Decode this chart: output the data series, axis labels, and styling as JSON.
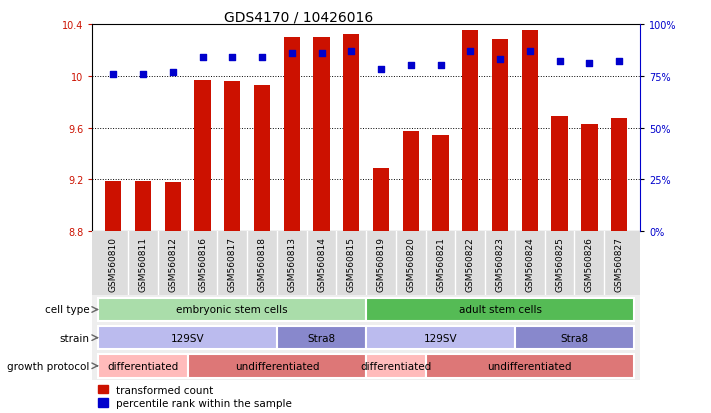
{
  "title": "GDS4170 / 10426016",
  "samples": [
    "GSM560810",
    "GSM560811",
    "GSM560812",
    "GSM560816",
    "GSM560817",
    "GSM560818",
    "GSM560813",
    "GSM560814",
    "GSM560815",
    "GSM560819",
    "GSM560820",
    "GSM560821",
    "GSM560822",
    "GSM560823",
    "GSM560824",
    "GSM560825",
    "GSM560826",
    "GSM560827"
  ],
  "red_values": [
    9.19,
    9.19,
    9.18,
    9.97,
    9.96,
    9.93,
    10.3,
    10.3,
    10.32,
    9.29,
    9.57,
    9.54,
    10.35,
    10.28,
    10.35,
    9.69,
    9.63,
    9.67
  ],
  "blue_values": [
    76,
    76,
    77,
    84,
    84,
    84,
    86,
    86,
    87,
    78,
    80,
    80,
    87,
    83,
    87,
    82,
    81,
    82
  ],
  "ymin": 8.8,
  "ymax": 10.4,
  "yticks": [
    8.8,
    9.2,
    9.6,
    10.0,
    10.4
  ],
  "right_yticks": [
    0,
    25,
    50,
    75,
    100
  ],
  "bar_color": "#cc1100",
  "dot_color": "#0000cc",
  "cell_type_groups": [
    {
      "label": "embryonic stem cells",
      "start": 0,
      "end": 8,
      "color": "#aaddaa"
    },
    {
      "label": "adult stem cells",
      "start": 9,
      "end": 17,
      "color": "#55bb55"
    }
  ],
  "strain_groups": [
    {
      "label": "129SV",
      "start": 0,
      "end": 5,
      "color": "#bbbbee"
    },
    {
      "label": "Stra8",
      "start": 6,
      "end": 8,
      "color": "#8888cc"
    },
    {
      "label": "129SV",
      "start": 9,
      "end": 13,
      "color": "#bbbbee"
    },
    {
      "label": "Stra8",
      "start": 14,
      "end": 17,
      "color": "#8888cc"
    }
  ],
  "protocol_groups": [
    {
      "label": "differentiated",
      "start": 0,
      "end": 2,
      "color": "#ffbbbb"
    },
    {
      "label": "undifferentiated",
      "start": 3,
      "end": 8,
      "color": "#dd7777"
    },
    {
      "label": "differentiated",
      "start": 9,
      "end": 10,
      "color": "#ffbbbb"
    },
    {
      "label": "undifferentiated",
      "start": 11,
      "end": 17,
      "color": "#dd7777"
    }
  ],
  "row_labels": [
    "cell type",
    "strain",
    "growth protocol"
  ],
  "legend_items": [
    "transformed count",
    "percentile rank within the sample"
  ],
  "title_fontsize": 10,
  "axis_label_color_red": "#cc1100",
  "axis_label_color_blue": "#0000cc",
  "tick_label_fontsize": 7,
  "sample_fontsize": 6.5
}
